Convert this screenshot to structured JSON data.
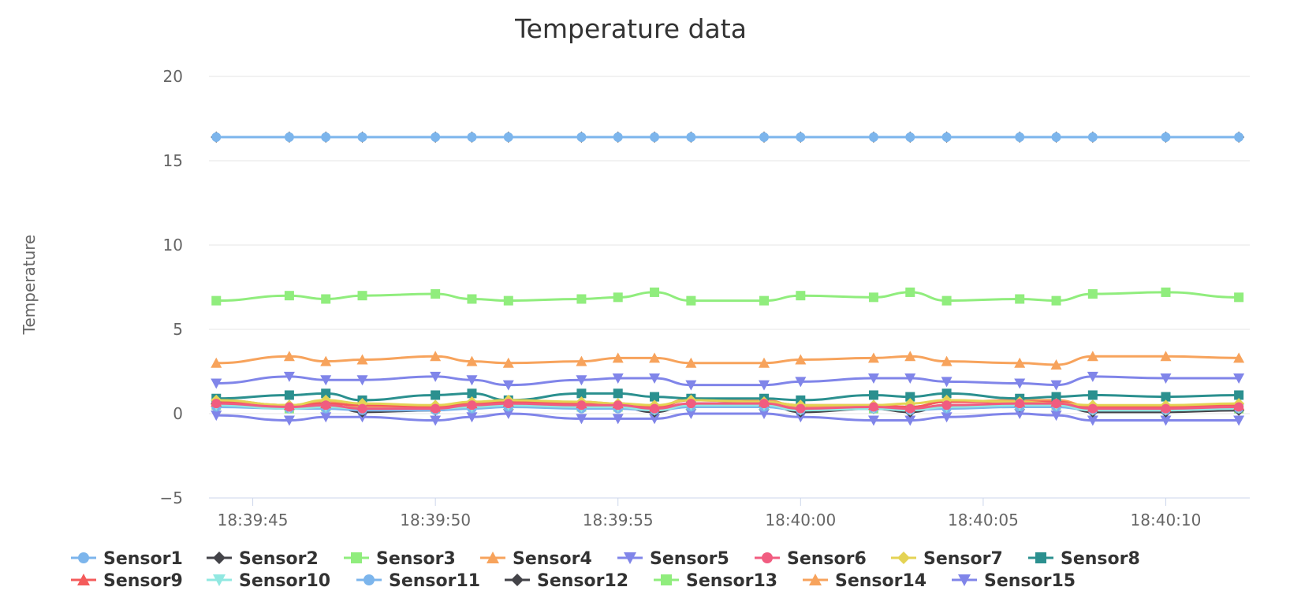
{
  "chart_data": {
    "type": "line",
    "title": "Temperature data",
    "xlabel": "",
    "ylabel": "Temperature",
    "ylim": [
      -5,
      20
    ],
    "yticks": [
      -5,
      0,
      5,
      10,
      15,
      20
    ],
    "xtick_labels": [
      "18:39:45",
      "18:39:50",
      "18:39:55",
      "18:40:00",
      "18:40:05",
      "18:40:10"
    ],
    "xtick_seconds": [
      2,
      7,
      12,
      17,
      22,
      27
    ],
    "x_range_seconds": [
      0.8,
      29.3
    ],
    "x_seconds": [
      1,
      3,
      4,
      5,
      7,
      8,
      9,
      11,
      12,
      13,
      14,
      16,
      17,
      19,
      20,
      21,
      23,
      24,
      25,
      27,
      29
    ],
    "grid": true,
    "legend_position": "bottom",
    "series": [
      {
        "name": "Sensor1",
        "color": "#7cb5ec",
        "marker": "circle",
        "values": [
          16.4,
          16.4,
          16.4,
          16.4,
          16.4,
          16.4,
          16.4,
          16.4,
          16.4,
          16.4,
          16.4,
          16.4,
          16.4,
          16.4,
          16.4,
          16.4,
          16.4,
          16.4,
          16.4,
          16.4,
          16.4
        ]
      },
      {
        "name": "Sensor2",
        "color": "#434348",
        "marker": "diamond",
        "values": [
          16.4,
          16.4,
          16.4,
          16.4,
          16.4,
          16.4,
          16.4,
          16.4,
          16.4,
          16.4,
          16.4,
          16.4,
          16.4,
          16.4,
          16.4,
          16.4,
          16.4,
          16.4,
          16.4,
          16.4,
          16.4
        ]
      },
      {
        "name": "Sensor3",
        "color": "#90ed7d",
        "marker": "square",
        "values": [
          6.7,
          7.0,
          6.8,
          7.0,
          7.1,
          6.8,
          6.7,
          6.8,
          6.9,
          7.2,
          6.7,
          6.7,
          7.0,
          6.9,
          7.2,
          6.7,
          6.8,
          6.7,
          7.1,
          7.2,
          6.9
        ]
      },
      {
        "name": "Sensor4",
        "color": "#f7a35c",
        "marker": "triangle",
        "values": [
          3.0,
          3.4,
          3.1,
          3.2,
          3.4,
          3.1,
          3.0,
          3.1,
          3.3,
          3.3,
          3.0,
          3.0,
          3.2,
          3.3,
          3.4,
          3.1,
          3.0,
          2.9,
          3.4,
          3.4,
          3.3
        ]
      },
      {
        "name": "Sensor5",
        "color": "#8085e9",
        "marker": "triangle-down",
        "values": [
          1.8,
          2.2,
          2.0,
          2.0,
          2.2,
          2.0,
          1.7,
          2.0,
          2.1,
          2.1,
          1.7,
          1.7,
          1.9,
          2.1,
          2.1,
          1.9,
          1.8,
          1.7,
          2.2,
          2.1,
          2.1
        ]
      },
      {
        "name": "Sensor6",
        "color": "#f15c80",
        "marker": "circle",
        "values": [
          0.6,
          0.4,
          0.5,
          0.3,
          0.3,
          0.5,
          0.6,
          0.5,
          0.5,
          0.3,
          0.6,
          0.6,
          0.3,
          0.4,
          0.3,
          0.5,
          0.6,
          0.6,
          0.3,
          0.3,
          0.4
        ]
      },
      {
        "name": "Sensor7",
        "color": "#e4d354",
        "marker": "diamond",
        "values": [
          0.8,
          0.5,
          0.8,
          0.6,
          0.5,
          0.7,
          0.8,
          0.7,
          0.6,
          0.5,
          0.8,
          0.7,
          0.5,
          0.5,
          0.6,
          0.8,
          0.7,
          0.6,
          0.5,
          0.5,
          0.6
        ]
      },
      {
        "name": "Sensor8",
        "color": "#2b908f",
        "marker": "square",
        "values": [
          0.9,
          1.1,
          1.2,
          0.8,
          1.1,
          1.2,
          0.8,
          1.2,
          1.2,
          1.0,
          0.9,
          0.9,
          0.8,
          1.1,
          1.0,
          1.2,
          0.9,
          1.0,
          1.1,
          1.0,
          1.1
        ]
      },
      {
        "name": "Sensor9",
        "color": "#f45b5b",
        "marker": "triangle",
        "values": [
          0.7,
          0.5,
          0.6,
          0.5,
          0.4,
          0.6,
          0.7,
          0.6,
          0.6,
          0.4,
          0.8,
          0.7,
          0.5,
          0.5,
          0.4,
          0.7,
          0.7,
          0.7,
          0.4,
          0.4,
          0.5
        ]
      },
      {
        "name": "Sensor10",
        "color": "#91e8e1",
        "marker": "triangle-down",
        "values": [
          0.5,
          0.3,
          0.4,
          0.3,
          0.3,
          0.4,
          0.5,
          0.4,
          0.4,
          0.2,
          0.5,
          0.5,
          0.2,
          0.3,
          0.2,
          0.4,
          0.5,
          0.5,
          0.2,
          0.2,
          0.3
        ]
      },
      {
        "name": "Sensor11",
        "color": "#7cb5ec",
        "marker": "circle",
        "values": [
          0.4,
          0.3,
          0.3,
          0.2,
          0.2,
          0.3,
          0.4,
          0.3,
          0.3,
          0.2,
          0.4,
          0.4,
          0.2,
          0.3,
          0.2,
          0.3,
          0.4,
          0.4,
          0.2,
          0.2,
          0.3
        ]
      },
      {
        "name": "Sensor12",
        "color": "#434348",
        "marker": "diamond",
        "values": [
          0.6,
          0.4,
          0.6,
          0.1,
          0.2,
          0.5,
          0.5,
          0.5,
          0.4,
          0.1,
          0.6,
          0.6,
          0.1,
          0.3,
          0.1,
          0.5,
          0.4,
          0.6,
          0.1,
          0.1,
          0.2
        ]
      },
      {
        "name": "Sensor13",
        "color": "#90ed7d",
        "marker": "square",
        "values": [
          0.5,
          0.3,
          0.4,
          0.3,
          0.3,
          0.5,
          0.5,
          0.4,
          0.4,
          0.3,
          0.5,
          0.5,
          0.3,
          0.3,
          0.3,
          0.5,
          0.5,
          0.5,
          0.3,
          0.3,
          0.3
        ]
      },
      {
        "name": "Sensor14",
        "color": "#f7a35c",
        "marker": "triangle",
        "values": [
          0.8,
          0.5,
          0.7,
          0.4,
          0.4,
          0.6,
          0.7,
          0.7,
          0.6,
          0.4,
          0.9,
          0.8,
          0.4,
          0.5,
          0.4,
          0.7,
          0.8,
          0.8,
          0.4,
          0.4,
          0.5
        ]
      },
      {
        "name": "Sensor15",
        "color": "#8085e9",
        "marker": "triangle-down",
        "values": [
          -0.1,
          -0.4,
          -0.2,
          -0.2,
          -0.4,
          -0.2,
          0.0,
          -0.3,
          -0.3,
          -0.3,
          0.0,
          0.0,
          -0.2,
          -0.4,
          -0.4,
          -0.2,
          0.0,
          -0.1,
          -0.4,
          -0.4,
          -0.4
        ]
      }
    ]
  }
}
